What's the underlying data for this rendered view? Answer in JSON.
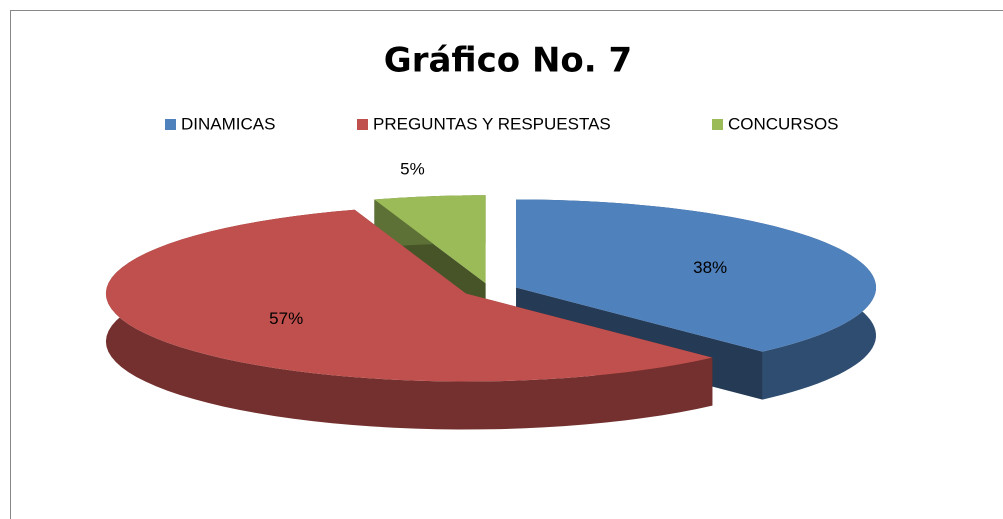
{
  "chart_data": {
    "type": "pie",
    "title": "Gráfico No. 7",
    "categories": [
      "DINAMICAS",
      "PREGUNTAS Y RESPUESTAS",
      "CONCURSOS"
    ],
    "values": [
      38,
      57,
      5
    ],
    "value_labels": [
      "38%",
      "57%",
      "5%"
    ],
    "colors": [
      "#4f81bd",
      "#c0504d",
      "#9bbb59"
    ],
    "legend": "top"
  }
}
